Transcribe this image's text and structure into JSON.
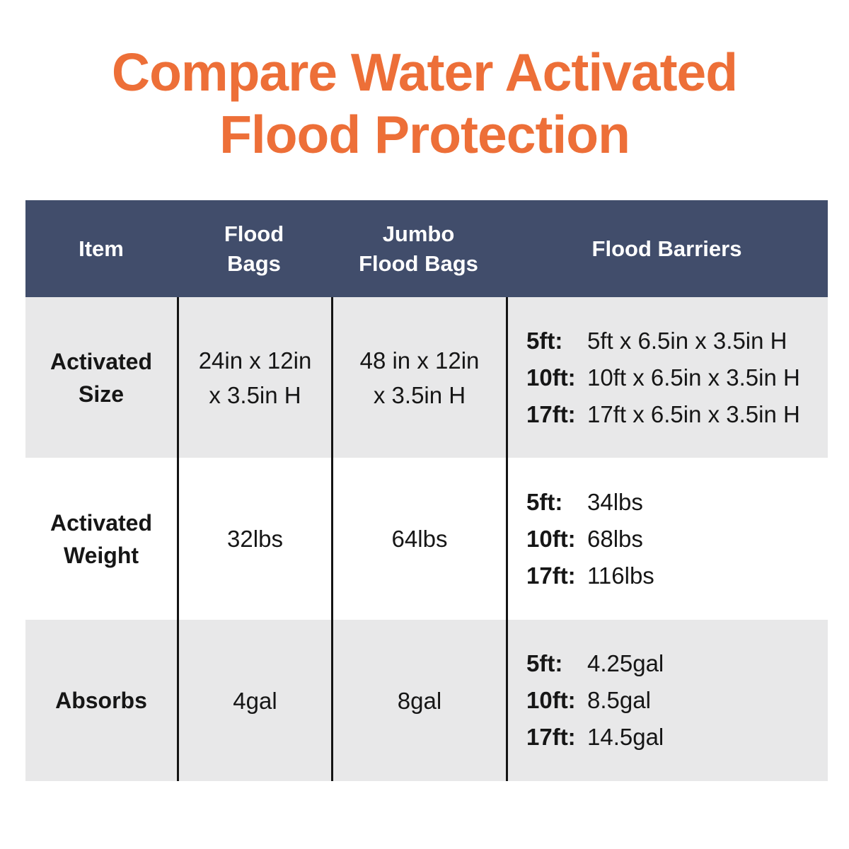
{
  "title": {
    "line1": "Compare Water Activated",
    "line2": "Flood Protection"
  },
  "colors": {
    "title_orange": "#ED6F38",
    "header_navy": "#414D6B",
    "row_gray": "#E8E8E9",
    "row_white": "#FFFFFF",
    "divider_black": "#141414",
    "header_text": "#FFFFFF",
    "body_text": "#161616"
  },
  "table": {
    "header": {
      "item": "Item",
      "flood_bags": [
        "Flood",
        "Bags"
      ],
      "jumbo": [
        "Jumbo",
        "Flood Bags"
      ],
      "barriers": "Flood Barriers"
    },
    "rows": [
      {
        "label": [
          "Activated",
          "Size"
        ],
        "flood_bags": [
          "24in x 12in",
          "x 3.5in H"
        ],
        "jumbo": [
          "48 in x 12in",
          "x 3.5in H"
        ],
        "barriers": [
          {
            "size": "5ft:",
            "value": "5ft x 6.5in x 3.5in H"
          },
          {
            "size": "10ft:",
            "value": "10ft x 6.5in x 3.5in H"
          },
          {
            "size": "17ft:",
            "value": "17ft x 6.5in x 3.5in H"
          }
        ]
      },
      {
        "label": [
          "Activated",
          "Weight"
        ],
        "flood_bags": [
          "32lbs"
        ],
        "jumbo": [
          "64lbs"
        ],
        "barriers": [
          {
            "size": "5ft:",
            "value": "34lbs"
          },
          {
            "size": "10ft:",
            "value": "68lbs"
          },
          {
            "size": "17ft:",
            "value": "116lbs"
          }
        ]
      },
      {
        "label": [
          "Absorbs"
        ],
        "flood_bags": [
          "4gal"
        ],
        "jumbo": [
          "8gal"
        ],
        "barriers": [
          {
            "size": "5ft:",
            "value": "4.25gal"
          },
          {
            "size": "10ft:",
            "value": "8.5gal"
          },
          {
            "size": "17ft:",
            "value": "14.5gal"
          }
        ]
      }
    ]
  },
  "chart_data": {
    "type": "table",
    "title": "Compare Water Activated Flood Protection",
    "columns": [
      "Item",
      "Flood Bags",
      "Jumbo Flood Bags",
      "Flood Barriers"
    ],
    "rows": [
      [
        "Activated Size",
        "24in x 12in x 3.5in H",
        "48 in x 12in x 3.5in H",
        "5ft: 5ft x 6.5in x 3.5in H | 10ft: 10ft x 6.5in x 3.5in H | 17ft: 17ft x 6.5in x 3.5in H"
      ],
      [
        "Activated Weight",
        "32lbs",
        "64lbs",
        "5ft: 34lbs | 10ft: 68lbs | 17ft: 116lbs"
      ],
      [
        "Absorbs",
        "4gal",
        "8gal",
        "5ft: 4.25gal | 10ft: 8.5gal | 17ft: 14.5gal"
      ]
    ],
    "layout": {
      "header_background": "#414D6B",
      "alternating_row_backgrounds": [
        "#E8E8E9",
        "#FFFFFF",
        "#E8E8E9"
      ],
      "column_dividers": "black vertical lines in body only"
    }
  }
}
